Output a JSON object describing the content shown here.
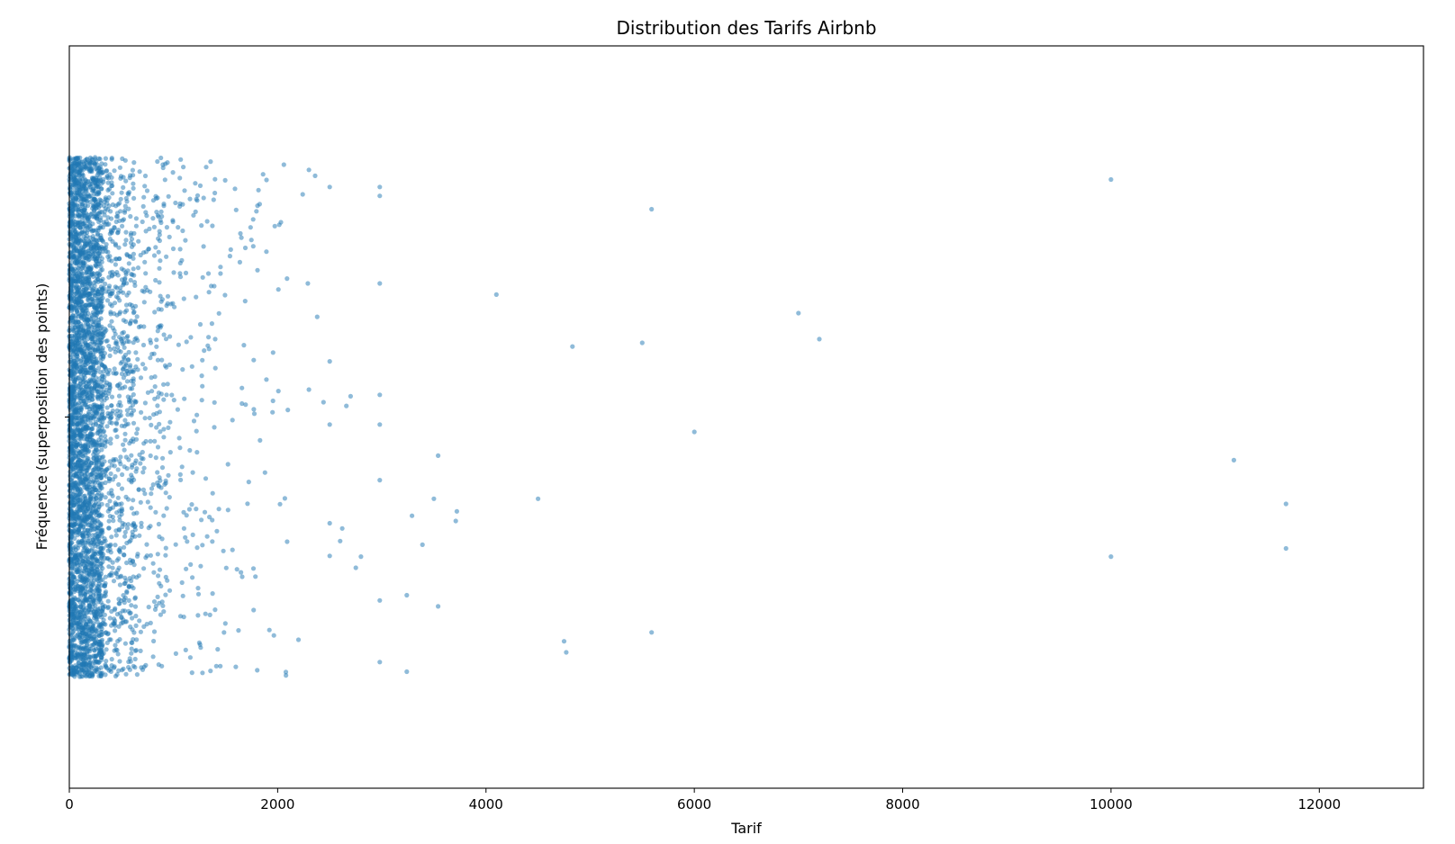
{
  "chart_data": {
    "type": "scatter",
    "title": "Distribution des Tarifs Airbnb",
    "xlabel": "Tarif",
    "ylabel": "Fréquence (superposition des points)",
    "xlim": [
      0,
      13000
    ],
    "ylim": [
      -0.5,
      0.5
    ],
    "xticks": [
      0,
      2000,
      4000,
      6000,
      8000,
      10000,
      12000
    ],
    "x_tick_labels": [
      "0",
      "2000",
      "4000",
      "6000",
      "8000",
      "10000",
      "12000"
    ],
    "yticks": [
      0
    ],
    "grid": false,
    "legend": "none",
    "color": "#1f77b4",
    "point_opacity": 0.5,
    "jitter_range": [
      -0.35,
      0.35
    ],
    "dense_band_x_range": [
      0,
      950
    ],
    "outliers": [
      {
        "x": 10000,
        "y": 0.32
      },
      {
        "x": 5590,
        "y": 0.28
      },
      {
        "x": 4100,
        "y": 0.165
      },
      {
        "x": 7000,
        "y": 0.14
      },
      {
        "x": 7200,
        "y": 0.105
      },
      {
        "x": 4830,
        "y": 0.095
      },
      {
        "x": 5500,
        "y": 0.1
      },
      {
        "x": 6000,
        "y": -0.02
      },
      {
        "x": 11180,
        "y": -0.058
      },
      {
        "x": 11680,
        "y": -0.117
      },
      {
        "x": 11680,
        "y": -0.177
      },
      {
        "x": 10000,
        "y": -0.188
      },
      {
        "x": 4500,
        "y": -0.11
      },
      {
        "x": 5590,
        "y": -0.29
      },
      {
        "x": 4750,
        "y": -0.302
      },
      {
        "x": 4770,
        "y": -0.317
      },
      {
        "x": 3540,
        "y": -0.052
      },
      {
        "x": 3500,
        "y": -0.11
      },
      {
        "x": 3720,
        "y": -0.127
      },
      {
        "x": 3710,
        "y": -0.14
      },
      {
        "x": 3290,
        "y": -0.133
      },
      {
        "x": 3390,
        "y": -0.172
      },
      {
        "x": 3540,
        "y": -0.255
      },
      {
        "x": 3240,
        "y": -0.24
      },
      {
        "x": 3240,
        "y": -0.343
      },
      {
        "x": 2980,
        "y": 0.298
      },
      {
        "x": 2980,
        "y": 0.31
      },
      {
        "x": 2980,
        "y": 0.18
      },
      {
        "x": 2980,
        "y": 0.03
      },
      {
        "x": 2980,
        "y": -0.01
      },
      {
        "x": 2980,
        "y": -0.085
      },
      {
        "x": 2980,
        "y": -0.247
      },
      {
        "x": 2980,
        "y": -0.33
      },
      {
        "x": 2500,
        "y": 0.31
      },
      {
        "x": 2500,
        "y": 0.075
      },
      {
        "x": 2500,
        "y": -0.01
      },
      {
        "x": 2500,
        "y": -0.143
      },
      {
        "x": 2500,
        "y": -0.187
      },
      {
        "x": 2620,
        "y": -0.15
      },
      {
        "x": 2600,
        "y": -0.167
      },
      {
        "x": 2800,
        "y": -0.188
      },
      {
        "x": 2750,
        "y": -0.203
      },
      {
        "x": 2700,
        "y": 0.028
      },
      {
        "x": 2660,
        "y": 0.015
      },
      {
        "x": 2440,
        "y": 0.02
      },
      {
        "x": 2300,
        "y": 0.037
      },
      {
        "x": 2380,
        "y": 0.135
      },
      {
        "x": 2290,
        "y": 0.18
      },
      {
        "x": 2240,
        "y": 0.3
      },
      {
        "x": 2360,
        "y": 0.325
      },
      {
        "x": 2300,
        "y": 0.333
      },
      {
        "x": 2060,
        "y": 0.34
      },
      {
        "x": 2200,
        "y": -0.3
      },
      {
        "x": 2080,
        "y": -0.348
      },
      {
        "x": 1860,
        "y": 0.327
      }
    ]
  }
}
